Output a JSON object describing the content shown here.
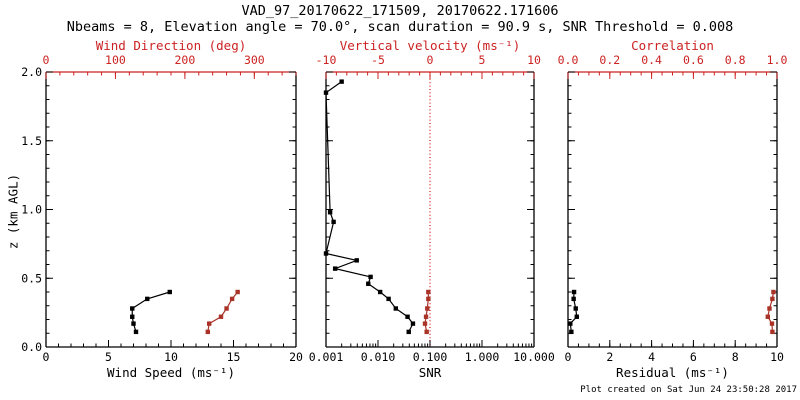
{
  "header": {
    "title": "VAD_97_20170622_171509, 20170622.171606",
    "subtitle": "Nbeams = 8, Elevation angle = 70.0°, scan duration = 90.9 s, SNR Threshold = 0.008"
  },
  "footer": {
    "created": "Plot created on Sat Jun 24 23:50:28 2017"
  },
  "colors": {
    "axis_red": "#cc2222",
    "series_red": "#aa3328",
    "refline_red": "#dd2222",
    "black": "#000000"
  },
  "y_axis": {
    "label": "z (km AGL)",
    "range": [
      0,
      2
    ],
    "tick_values": [
      0,
      0.5,
      1,
      1.5,
      2
    ],
    "tick_labels": [
      "0.0",
      "0.5",
      "1.0",
      "1.5",
      "2.0"
    ],
    "minor_step": 0.1
  },
  "chart_data": [
    {
      "type": "line",
      "name": "wind-panel",
      "bottom_axis": {
        "label": "Wind Speed (ms⁻¹)",
        "range": [
          0,
          20
        ],
        "tick_values": [
          0,
          5,
          10,
          15,
          20
        ],
        "tick_labels": [
          "0",
          "5",
          "10",
          "15",
          "20"
        ],
        "minor_step": 1,
        "color": "#000000"
      },
      "top_axis": {
        "label": "Wind Direction (deg)",
        "range": [
          0,
          360
        ],
        "tick_values": [
          0,
          100,
          200,
          300
        ],
        "tick_labels": [
          "0",
          "100",
          "200",
          "300"
        ],
        "minor_step": 20,
        "color": "#cc2222"
      },
      "series": [
        {
          "name": "wind-speed",
          "axis": "bottom",
          "color": "#000000",
          "points": [
            [
              9.9,
              0.4
            ],
            [
              8.1,
              0.35
            ],
            [
              6.9,
              0.28
            ],
            [
              6.9,
              0.22
            ],
            [
              7.0,
              0.17
            ],
            [
              7.2,
              0.11
            ]
          ]
        },
        {
          "name": "wind-direction",
          "axis": "top",
          "color": "#aa3328",
          "points": [
            [
              276,
              0.4
            ],
            [
              268,
              0.35
            ],
            [
              260,
              0.28
            ],
            [
              252,
              0.22
            ],
            [
              235,
              0.17
            ],
            [
              233,
              0.11
            ]
          ]
        }
      ]
    },
    {
      "type": "line",
      "name": "snr-panel",
      "bottom_axis": {
        "label": "SNR",
        "scale": "log",
        "range": [
          0.001,
          10
        ],
        "tick_values": [
          0.001,
          0.01,
          0.1,
          1,
          10
        ],
        "tick_labels": [
          "0.001",
          "0.010",
          "0.100",
          "1.000",
          "10.000"
        ],
        "color": "#000000"
      },
      "top_axis": {
        "label": "Vertical velocity (ms⁻¹)",
        "range": [
          -10,
          10
        ],
        "tick_values": [
          -10,
          -5,
          0,
          5,
          10
        ],
        "tick_labels": [
          "-10",
          "-5",
          "0",
          "5",
          "10"
        ],
        "minor_step": 1,
        "color": "#cc2222"
      },
      "refline": {
        "axis": "top",
        "value": 0,
        "color": "#dd2222",
        "style": "dotted"
      },
      "series": [
        {
          "name": "snr",
          "axis": "bottom",
          "color": "#000000",
          "points": [
            [
              0.002,
              1.93
            ],
            [
              0.001,
              1.85
            ],
            [
              0.0012,
              0.98
            ],
            [
              0.0014,
              0.91
            ],
            [
              0.001,
              0.68
            ],
            [
              0.0039,
              0.63
            ],
            [
              0.0015,
              0.57
            ],
            [
              0.0072,
              0.51
            ],
            [
              0.0065,
              0.46
            ],
            [
              0.011,
              0.4
            ],
            [
              0.016,
              0.35
            ],
            [
              0.022,
              0.28
            ],
            [
              0.037,
              0.22
            ],
            [
              0.047,
              0.17
            ],
            [
              0.039,
              0.11
            ]
          ]
        },
        {
          "name": "vertical-velocity",
          "axis": "top",
          "color": "#aa3328",
          "points": [
            [
              -0.16,
              0.4
            ],
            [
              -0.16,
              0.35
            ],
            [
              -0.26,
              0.28
            ],
            [
              -0.38,
              0.22
            ],
            [
              -0.48,
              0.17
            ],
            [
              -0.32,
              0.11
            ]
          ]
        }
      ]
    },
    {
      "type": "line",
      "name": "residual-panel",
      "bottom_axis": {
        "label": "Residual (ms⁻¹)",
        "range": [
          0,
          10
        ],
        "tick_values": [
          0,
          2,
          4,
          6,
          8,
          10
        ],
        "tick_labels": [
          "0",
          "2",
          "4",
          "6",
          "8",
          "10"
        ],
        "minor_step": 0.5,
        "color": "#000000"
      },
      "top_axis": {
        "label": "Correlation",
        "range": [
          0,
          1
        ],
        "tick_values": [
          0,
          0.2,
          0.4,
          0.6,
          0.8,
          1
        ],
        "tick_labels": [
          "0.0",
          "0.2",
          "0.4",
          "0.6",
          "0.8",
          "1.0"
        ],
        "minor_step": 0.05,
        "color": "#cc2222"
      },
      "series": [
        {
          "name": "residual",
          "axis": "bottom",
          "color": "#000000",
          "points": [
            [
              0.29,
              0.4
            ],
            [
              0.27,
              0.35
            ],
            [
              0.37,
              0.28
            ],
            [
              0.42,
              0.22
            ],
            [
              0.11,
              0.17
            ],
            [
              0.16,
              0.11
            ]
          ]
        },
        {
          "name": "correlation",
          "axis": "top",
          "color": "#aa3328",
          "points": [
            [
              0.983,
              0.4
            ],
            [
              0.978,
              0.35
            ],
            [
              0.964,
              0.28
            ],
            [
              0.956,
              0.22
            ],
            [
              0.976,
              0.17
            ],
            [
              0.978,
              0.11
            ]
          ]
        }
      ]
    }
  ]
}
